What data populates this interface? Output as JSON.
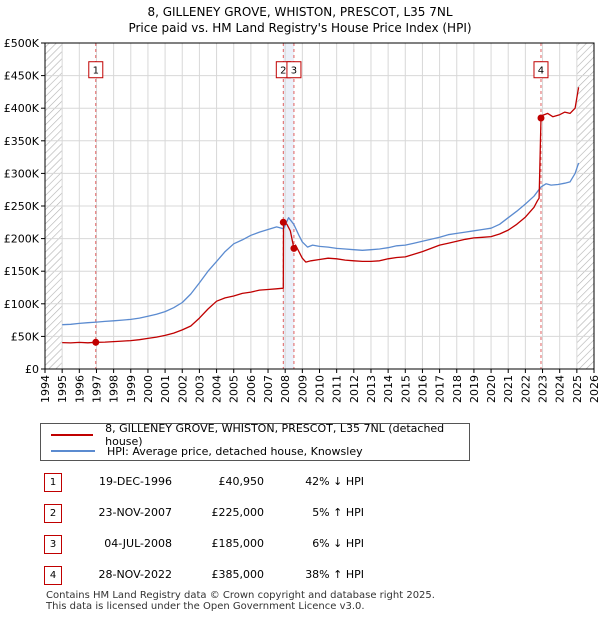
{
  "title": "8, GILLENEY GROVE, WHISTON, PRESCOT, L35 7NL",
  "subtitle": "Price paid vs. HM Land Registry's House Price Index (HPI)",
  "colors": {
    "property": "#c00000",
    "hpi": "#5b8bd0",
    "grid": "#d8d8d8",
    "vline": "#e06060",
    "shade": "#dde6f5",
    "hatch": "#b0b0b0"
  },
  "legend": {
    "property_label": "8, GILLENEY GROVE, WHISTON, PRESCOT, L35 7NL (detached house)",
    "hpi_label": "HPI: Average price, detached house, Knowsley"
  },
  "transactions": [
    {
      "num": "1",
      "date": "19-DEC-1996",
      "price": "£40,950",
      "hpi": "42% ↓ HPI"
    },
    {
      "num": "2",
      "date": "23-NOV-2007",
      "price": "£225,000",
      "hpi": "5% ↑ HPI"
    },
    {
      "num": "3",
      "date": "04-JUL-2008",
      "price": "£185,000",
      "hpi": "6% ↓ HPI"
    },
    {
      "num": "4",
      "date": "28-NOV-2022",
      "price": "£385,000",
      "hpi": "38% ↑ HPI"
    }
  ],
  "footer": {
    "line1": "Contains HM Land Registry data © Crown copyright and database right 2025.",
    "line2": "This data is licensed under the Open Government Licence v3.0."
  },
  "chart_data": {
    "type": "line",
    "title": "8, GILLENEY GROVE, WHISTON, PRESCOT, L35 7NL",
    "subtitle": "Price paid vs. HM Land Registry's House Price Index (HPI)",
    "xlabel": "",
    "ylabel": "",
    "xlim": [
      1994.0,
      2026.0
    ],
    "ylim": [
      0,
      500000
    ],
    "x_ticks": [
      1994,
      1995,
      1996,
      1997,
      1998,
      1999,
      2000,
      2001,
      2002,
      2003,
      2004,
      2005,
      2006,
      2007,
      2008,
      2009,
      2010,
      2011,
      2012,
      2013,
      2014,
      2015,
      2016,
      2017,
      2018,
      2019,
      2020,
      2021,
      2022,
      2023,
      2024,
      2025,
      2026
    ],
    "y_ticks": [
      {
        "value": 0,
        "label": "£0"
      },
      {
        "value": 50000,
        "label": "£50K"
      },
      {
        "value": 100000,
        "label": "£100K"
      },
      {
        "value": 150000,
        "label": "£150K"
      },
      {
        "value": 200000,
        "label": "£200K"
      },
      {
        "value": 250000,
        "label": "£250K"
      },
      {
        "value": 300000,
        "label": "£300K"
      },
      {
        "value": 350000,
        "label": "£350K"
      },
      {
        "value": 400000,
        "label": "£400K"
      },
      {
        "value": 450000,
        "label": "£450K"
      },
      {
        "value": 500000,
        "label": "£500K"
      }
    ],
    "shaded_periods": [
      {
        "x0": 1994.0,
        "x1": 1995.0,
        "kind": "hatch"
      },
      {
        "x0": 1996.96,
        "x1": 1996.96,
        "kind": "line"
      },
      {
        "x0": 2025.0,
        "x1": 2026.0,
        "kind": "hatch"
      }
    ],
    "grid": true,
    "legend_position": "below-chart",
    "series": [
      {
        "name": "8, GILLENEY GROVE, WHISTON, PRESCOT, L35 7NL (detached house)",
        "color": "#c00000",
        "x": [
          1995.0,
          1995.5,
          1996.0,
          1996.5,
          1996.96,
          1997.5,
          1998.0,
          1998.5,
          1999.0,
          1999.5,
          2000.0,
          2000.5,
          2001.0,
          2001.5,
          2002.0,
          2002.5,
          2003.0,
          2003.5,
          2004.0,
          2004.5,
          2005.0,
          2005.5,
          2006.0,
          2006.5,
          2007.0,
          2007.5,
          2007.89,
          2007.9,
          2008.1,
          2008.3,
          2008.51,
          2008.6,
          2008.8,
          2009.0,
          2009.2,
          2009.5,
          2010.0,
          2010.5,
          2011.0,
          2011.5,
          2012.0,
          2012.5,
          2013.0,
          2013.5,
          2014.0,
          2014.5,
          2015.0,
          2015.5,
          2016.0,
          2016.5,
          2017.0,
          2017.5,
          2018.0,
          2018.5,
          2019.0,
          2019.5,
          2020.0,
          2020.5,
          2021.0,
          2021.5,
          2022.0,
          2022.5,
          2022.7,
          2022.8,
          2022.91,
          2023.0,
          2023.3,
          2023.6,
          2024.0,
          2024.3,
          2024.6,
          2024.9,
          2025.1
        ],
        "values": [
          40500,
          40000,
          40800,
          40200,
          40950,
          41200,
          42000,
          42800,
          43500,
          45000,
          47000,
          49000,
          51500,
          55000,
          60000,
          66000,
          78000,
          92000,
          104000,
          109000,
          112000,
          116000,
          118000,
          121000,
          122000,
          123000,
          124000,
          225000,
          222000,
          212000,
          185000,
          190000,
          180000,
          170000,
          164000,
          166000,
          168000,
          170000,
          169000,
          167000,
          166000,
          165000,
          165000,
          166000,
          169000,
          171000,
          172000,
          176000,
          180000,
          185000,
          190000,
          193000,
          196000,
          199000,
          201000,
          202000,
          203000,
          207000,
          213000,
          222000,
          233000,
          248000,
          258000,
          262000,
          385000,
          389000,
          392000,
          387000,
          390000,
          394000,
          392000,
          400000,
          432000
        ]
      },
      {
        "name": "HPI: Average price, detached house, Knowsley",
        "color": "#5b8bd0",
        "x": [
          1995.0,
          1995.5,
          1996.0,
          1996.5,
          1997.0,
          1997.5,
          1998.0,
          1998.5,
          1999.0,
          1999.5,
          2000.0,
          2000.5,
          2001.0,
          2001.5,
          2002.0,
          2002.5,
          2003.0,
          2003.5,
          2004.0,
          2004.5,
          2005.0,
          2005.5,
          2006.0,
          2006.5,
          2007.0,
          2007.5,
          2007.9,
          2008.2,
          2008.5,
          2008.8,
          2009.0,
          2009.3,
          2009.6,
          2010.0,
          2010.5,
          2011.0,
          2011.5,
          2012.0,
          2012.5,
          2013.0,
          2013.5,
          2014.0,
          2014.5,
          2015.0,
          2015.5,
          2016.0,
          2016.5,
          2017.0,
          2017.5,
          2018.0,
          2018.5,
          2019.0,
          2019.5,
          2020.0,
          2020.5,
          2021.0,
          2021.5,
          2022.0,
          2022.5,
          2022.9,
          2023.2,
          2023.5,
          2023.9,
          2024.3,
          2024.6,
          2024.9,
          2025.1
        ],
        "values": [
          68000,
          68500,
          70000,
          71000,
          72000,
          73000,
          74000,
          75000,
          76000,
          78000,
          81000,
          84000,
          88000,
          94000,
          102000,
          115000,
          132000,
          150000,
          165000,
          180000,
          192000,
          198000,
          205000,
          210000,
          214000,
          218000,
          215000,
          232000,
          222000,
          205000,
          195000,
          187000,
          190000,
          188000,
          187000,
          185000,
          184000,
          183000,
          182000,
          183000,
          184000,
          186000,
          189000,
          190000,
          193000,
          196000,
          199000,
          202000,
          206000,
          208000,
          210000,
          212000,
          214000,
          216000,
          222000,
          232000,
          242000,
          253000,
          265000,
          279000,
          284000,
          282000,
          283000,
          285000,
          287000,
          300000,
          316000
        ]
      },
      {
        "name": "Sale points",
        "color": "#c00000",
        "x": [
          1996.96,
          2007.89,
          2008.51,
          2022.91
        ],
        "values": [
          40950,
          225000,
          185000,
          385000
        ]
      }
    ],
    "annotations": [
      {
        "label": "1",
        "x": 1996.96,
        "y": 459000
      },
      {
        "label": "2",
        "x": 2007.89,
        "y": 459000
      },
      {
        "label": "3",
        "x": 2008.51,
        "y": 459000
      },
      {
        "label": "4",
        "x": 2022.91,
        "y": 459000
      }
    ]
  }
}
